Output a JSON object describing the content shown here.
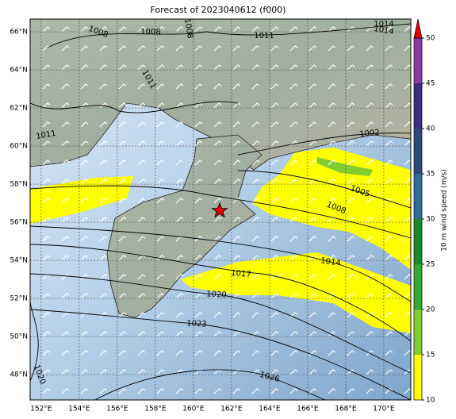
{
  "map": {
    "title": "Forecast of 2023040612 (f000)",
    "lon_range": [
      151.42,
      171.42
    ],
    "lat_range": [
      46.67,
      66.67
    ],
    "lat_ticks": [
      {
        "value": 48,
        "label": "48°N"
      },
      {
        "value": 50,
        "label": "50°N"
      },
      {
        "value": 52,
        "label": "52°N"
      },
      {
        "value": 54,
        "label": "54°N"
      },
      {
        "value": 56,
        "label": "56°N"
      },
      {
        "value": 58,
        "label": "58°N"
      },
      {
        "value": 60,
        "label": "60°N"
      },
      {
        "value": 62,
        "label": "62°N"
      },
      {
        "value": 64,
        "label": "64°N"
      },
      {
        "value": 66,
        "label": "66°N"
      }
    ],
    "lon_ticks": [
      {
        "value": 152,
        "label": "152°E"
      },
      {
        "value": 154,
        "label": "154°E"
      },
      {
        "value": 156,
        "label": "156°E"
      },
      {
        "value": 158,
        "label": "158°E"
      },
      {
        "value": 160,
        "label": "160°E"
      },
      {
        "value": 162,
        "label": "162°E"
      },
      {
        "value": 164,
        "label": "164°E"
      },
      {
        "value": 166,
        "label": "166°E"
      },
      {
        "value": 168,
        "label": "168°E"
      },
      {
        "value": 170,
        "label": "170°E"
      }
    ],
    "colorbar": {
      "label": "10 m wind speed (m/s)",
      "ticks": [
        10,
        15,
        20,
        25,
        30,
        35,
        40,
        45,
        50
      ],
      "colors": [
        "#ffff00",
        "#80cc33",
        "#33aa33",
        "#1a8a2a",
        "#2e6e98",
        "#2c4a7c",
        "#3e2c86",
        "#8f3aa8"
      ],
      "extend_color": "#e00000"
    },
    "contour_labels": [
      1008,
      1008,
      1008,
      1011,
      1014,
      1014,
      1011,
      1002,
      1011,
      1005,
      1008,
      1014,
      1017,
      1020,
      1023,
      1026,
      1020
    ]
  }
}
